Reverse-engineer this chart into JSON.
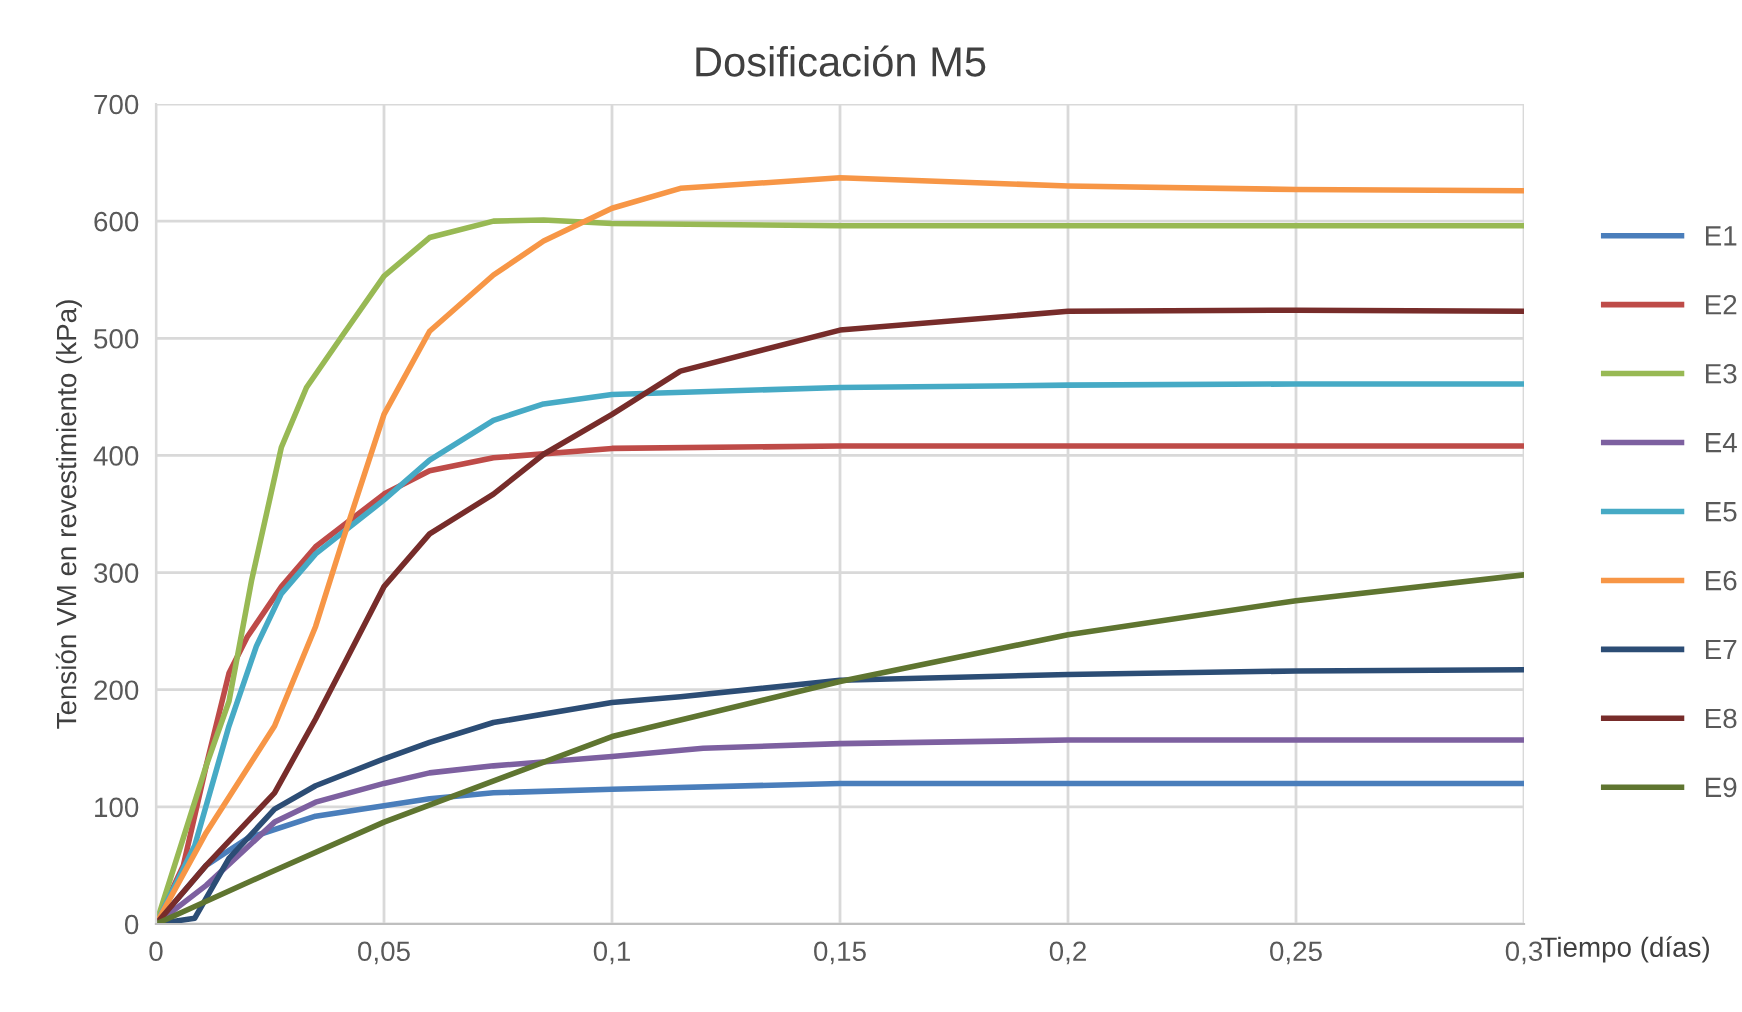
{
  "chart_data": {
    "type": "line",
    "title": "Dosificación M5",
    "xlabel": "Tiempo (días)",
    "ylabel": "Tensión VM en revestimiento (kPa)",
    "xlim": [
      0,
      0.3
    ],
    "xticks": [
      0,
      {
        "value": 0.05,
        "label": "0,05"
      },
      {
        "value": 0.1,
        "label": "0,1"
      },
      {
        "value": 0.15,
        "label": "0,15"
      },
      {
        "value": 0.2,
        "label": "0,2"
      },
      {
        "value": 0.25,
        "label": "0,25"
      },
      {
        "value": 0.3,
        "label": "0,3"
      }
    ],
    "ylim": [
      0,
      700
    ],
    "yticks": [
      0,
      100,
      200,
      300,
      400,
      500,
      600,
      700
    ],
    "grid": true,
    "legend": "right",
    "marker": "none",
    "line_style": "solid",
    "series": [
      {
        "name": "E1",
        "color": "#4a7ebb",
        "x": [
          0,
          0.011,
          0.02,
          0.035,
          0.05,
          0.06,
          0.074,
          0.1,
          0.15,
          0.2,
          0.25,
          0.3
        ],
        "values": [
          0,
          50,
          73,
          92,
          101,
          107,
          112,
          115,
          120,
          120,
          120,
          120
        ]
      },
      {
        "name": "E2",
        "color": "#be4b48",
        "x": [
          0,
          0.006,
          0.011,
          0.016,
          0.02,
          0.0275,
          0.035,
          0.05,
          0.06,
          0.074,
          0.1,
          0.15,
          0.2,
          0.25,
          0.3
        ],
        "values": [
          0,
          50,
          135,
          214,
          245,
          288,
          322,
          367,
          387,
          398,
          406,
          408,
          408,
          408,
          408
        ]
      },
      {
        "name": "E3",
        "color": "#98b954",
        "x": [
          0,
          0.011,
          0.016,
          0.021,
          0.0275,
          0.033,
          0.041,
          0.05,
          0.06,
          0.074,
          0.085,
          0.1,
          0.15,
          0.2,
          0.25,
          0.3
        ],
        "values": [
          0,
          135,
          190,
          294,
          407,
          458,
          503,
          553,
          586,
          600,
          601,
          598,
          596,
          596,
          596,
          596
        ]
      },
      {
        "name": "E4",
        "color": "#7d60a0",
        "x": [
          0,
          0.011,
          0.026,
          0.035,
          0.05,
          0.06,
          0.074,
          0.1,
          0.12,
          0.15,
          0.2,
          0.25,
          0.3
        ],
        "values": [
          0,
          33,
          87,
          104,
          120,
          129,
          135,
          143,
          150,
          154,
          157,
          157,
          157
        ]
      },
      {
        "name": "E5",
        "color": "#46aac5",
        "x": [
          0,
          0.0085,
          0.016,
          0.022,
          0.0275,
          0.035,
          0.05,
          0.06,
          0.074,
          0.085,
          0.1,
          0.15,
          0.2,
          0.25,
          0.3
        ],
        "values": [
          0,
          67,
          169,
          237,
          282,
          316,
          362,
          396,
          430,
          444,
          452,
          458,
          460,
          461,
          461
        ]
      },
      {
        "name": "E6",
        "color": "#f79646",
        "x": [
          0,
          0.011,
          0.026,
          0.035,
          0.041,
          0.05,
          0.06,
          0.074,
          0.085,
          0.1,
          0.115,
          0.15,
          0.2,
          0.25,
          0.3
        ],
        "values": [
          0,
          78,
          169,
          254,
          328,
          435,
          506,
          554,
          583,
          611,
          628,
          637,
          630,
          627,
          626
        ]
      },
      {
        "name": "E7",
        "color": "#2c4d75",
        "x": [
          0,
          0.0085,
          0.016,
          0.026,
          0.035,
          0.05,
          0.06,
          0.074,
          0.1,
          0.115,
          0.15,
          0.2,
          0.25,
          0.3
        ],
        "values": [
          0,
          5,
          56,
          98,
          118,
          141,
          155,
          172,
          189,
          194,
          208,
          213,
          216,
          217
        ]
      },
      {
        "name": "E8",
        "color": "#772c2a",
        "x": [
          0,
          0.011,
          0.026,
          0.035,
          0.041,
          0.05,
          0.06,
          0.074,
          0.085,
          0.1,
          0.115,
          0.15,
          0.2,
          0.25,
          0.3
        ],
        "values": [
          0,
          50,
          112,
          175,
          220,
          288,
          333,
          367,
          401,
          435,
          472,
          507,
          523,
          524,
          523
        ]
      },
      {
        "name": "E9",
        "color": "#5f7530",
        "x": [
          0,
          0.025,
          0.05,
          0.1,
          0.15,
          0.2,
          0.25,
          0.3
        ],
        "values": [
          0,
          44,
          87,
          160,
          207,
          247,
          276,
          298
        ]
      }
    ]
  }
}
